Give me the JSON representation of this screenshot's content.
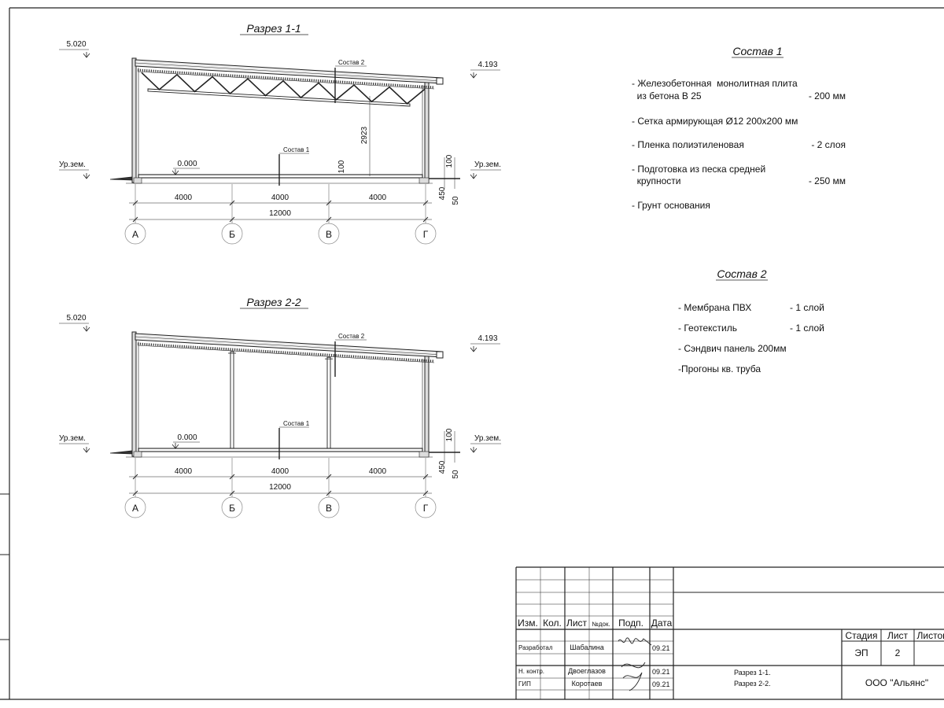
{
  "sections": [
    {
      "title": "Разрез 1-1",
      "structure": "truss",
      "top_elevation": "5.020",
      "eave_elevation": "4.193",
      "floor_elevation": "0.000",
      "ground_label_left": "Ур.зем.",
      "ground_label_right": "Ур.зем.",
      "roof_callout": "Состав 2",
      "floor_callout": "Состав 1",
      "height_dim": "2923",
      "floor_dim": "100",
      "right_dims": [
        "100",
        "450",
        "50"
      ],
      "bay_dims": [
        "4000",
        "4000",
        "4000"
      ],
      "total_dim": "12000",
      "axes": [
        "А",
        "Б",
        "В",
        "Г"
      ]
    },
    {
      "title": "Разрез 2-2",
      "structure": "columns",
      "top_elevation": "5.020",
      "eave_elevation": "4.193",
      "floor_elevation": "0.000",
      "ground_label_left": "Ур.зем.",
      "ground_label_right": "Ур.зем.",
      "roof_callout": "Состав 2",
      "floor_callout": "Состав 1",
      "right_dims": [
        "100",
        "450",
        "50"
      ],
      "bay_dims": [
        "4000",
        "4000",
        "4000"
      ],
      "total_dim": "12000",
      "axes": [
        "А",
        "Б",
        "В",
        "Г"
      ]
    }
  ],
  "specs": [
    {
      "title": "Состав 1",
      "lines": [
        {
          "text": "- Железобетонная  монолитная плита",
          "value": ""
        },
        {
          "text": "  из бетона В 25",
          "value": "- 200 мм"
        },
        {
          "text": "- Сетка армирующая Ø12 200x200 мм",
          "value": ""
        },
        {
          "text": "- Пленка полиэтиленовая",
          "value": "-  2 слоя"
        },
        {
          "text": "- Подготовка из песка средней",
          "value": ""
        },
        {
          "text": "  крупности",
          "value": "- 250 мм"
        },
        {
          "text": "- Грунт основания",
          "value": ""
        }
      ]
    },
    {
      "title": "Состав 2",
      "lines": [
        {
          "text": "- Мембрана ПВХ",
          "value": "- 1 слой"
        },
        {
          "text": "- Геотекстиль",
          "value": "- 1 слой"
        },
        {
          "text": "- Сэндвич панель 200мм",
          "value": ""
        },
        {
          "text": "-Прогоны кв. труба",
          "value": ""
        }
      ]
    }
  ],
  "title_block": {
    "headers": [
      "Изм.",
      "Кол.",
      "Лист",
      "№док.",
      "Подп.",
      "Дата"
    ],
    "rows": [
      {
        "role": "Разработал",
        "name": "Шабалина",
        "date": "09.21"
      },
      {
        "role": "Н. контр.",
        "name": "Двоеглазов",
        "date": "09.21"
      },
      {
        "role": "ГИП",
        "name": "Коротаев",
        "date": "09.21"
      }
    ],
    "stage_headers": [
      "Стадия",
      "Лист",
      "Листов"
    ],
    "stage": "ЭП",
    "sheet": "2",
    "sheet_title": [
      "Разрез 1-1.",
      "Разрез 2-2."
    ],
    "company": "ООО \"Альянс\""
  }
}
